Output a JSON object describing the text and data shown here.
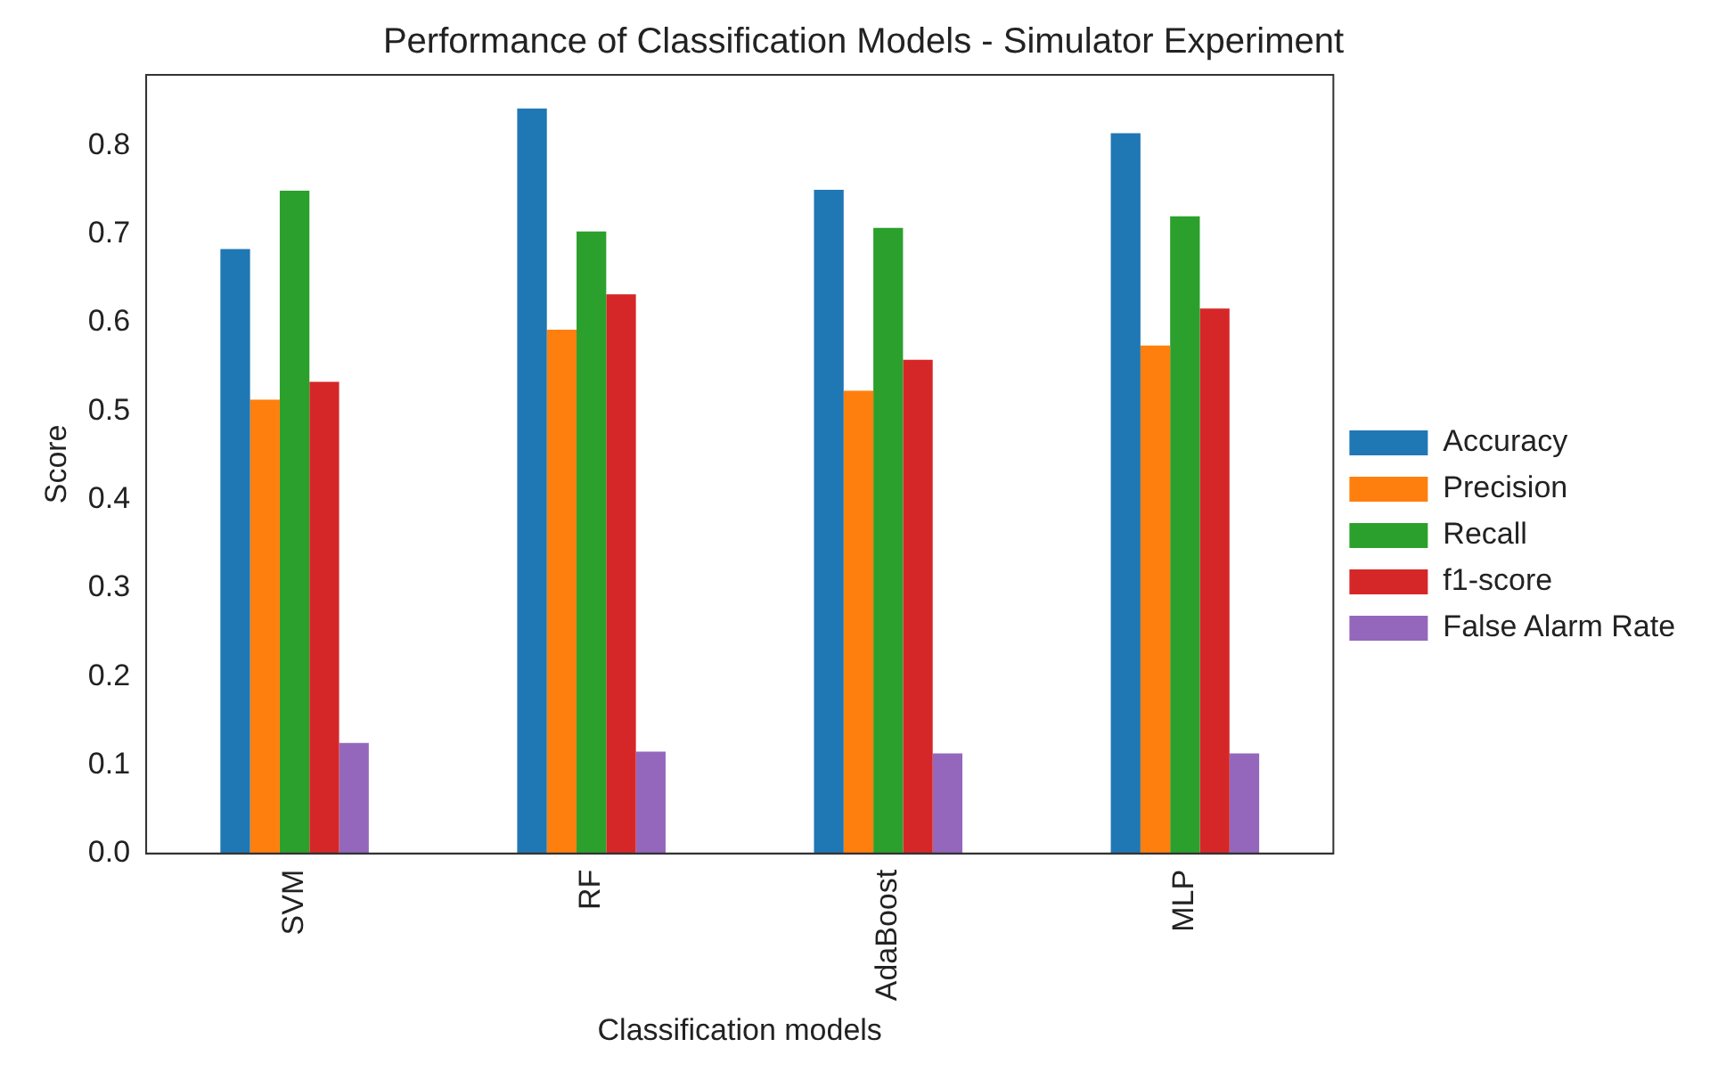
{
  "chart_data": {
    "type": "bar",
    "title": "Performance of Classification Models - Simulator Experiment",
    "xlabel": "Classification models",
    "ylabel": "Score",
    "categories": [
      "SVM",
      "RF",
      "AdaBoost",
      "MLP"
    ],
    "series": [
      {
        "name": "Accuracy",
        "color": "#1f77b4",
        "values": [
          0.683,
          0.842,
          0.75,
          0.814
        ]
      },
      {
        "name": "Precision",
        "color": "#ff7f0e",
        "values": [
          0.513,
          0.592,
          0.523,
          0.574
        ]
      },
      {
        "name": "Recall",
        "color": "#2ca02c",
        "values": [
          0.749,
          0.703,
          0.707,
          0.72
        ]
      },
      {
        "name": "f1-score",
        "color": "#d62728",
        "values": [
          0.533,
          0.632,
          0.558,
          0.616
        ]
      },
      {
        "name": "False Alarm Rate",
        "color": "#9467bd",
        "values": [
          0.125,
          0.115,
          0.113,
          0.113
        ]
      }
    ],
    "ylim": [
      0,
      0.88
    ],
    "yticks": [
      {
        "value": 0,
        "label": "0.0"
      },
      {
        "value": 0.1,
        "label": "0.1"
      },
      {
        "value": 0.2,
        "label": "0.2"
      },
      {
        "value": 0.3,
        "label": "0.3"
      },
      {
        "value": 0.4,
        "label": "0.4"
      },
      {
        "value": 0.5,
        "label": "0.5"
      },
      {
        "value": 0.6,
        "label": "0.6"
      },
      {
        "value": 0.7,
        "label": "0.7"
      },
      {
        "value": 0.8,
        "label": "0.8"
      }
    ],
    "grid": false,
    "legend": "right"
  }
}
